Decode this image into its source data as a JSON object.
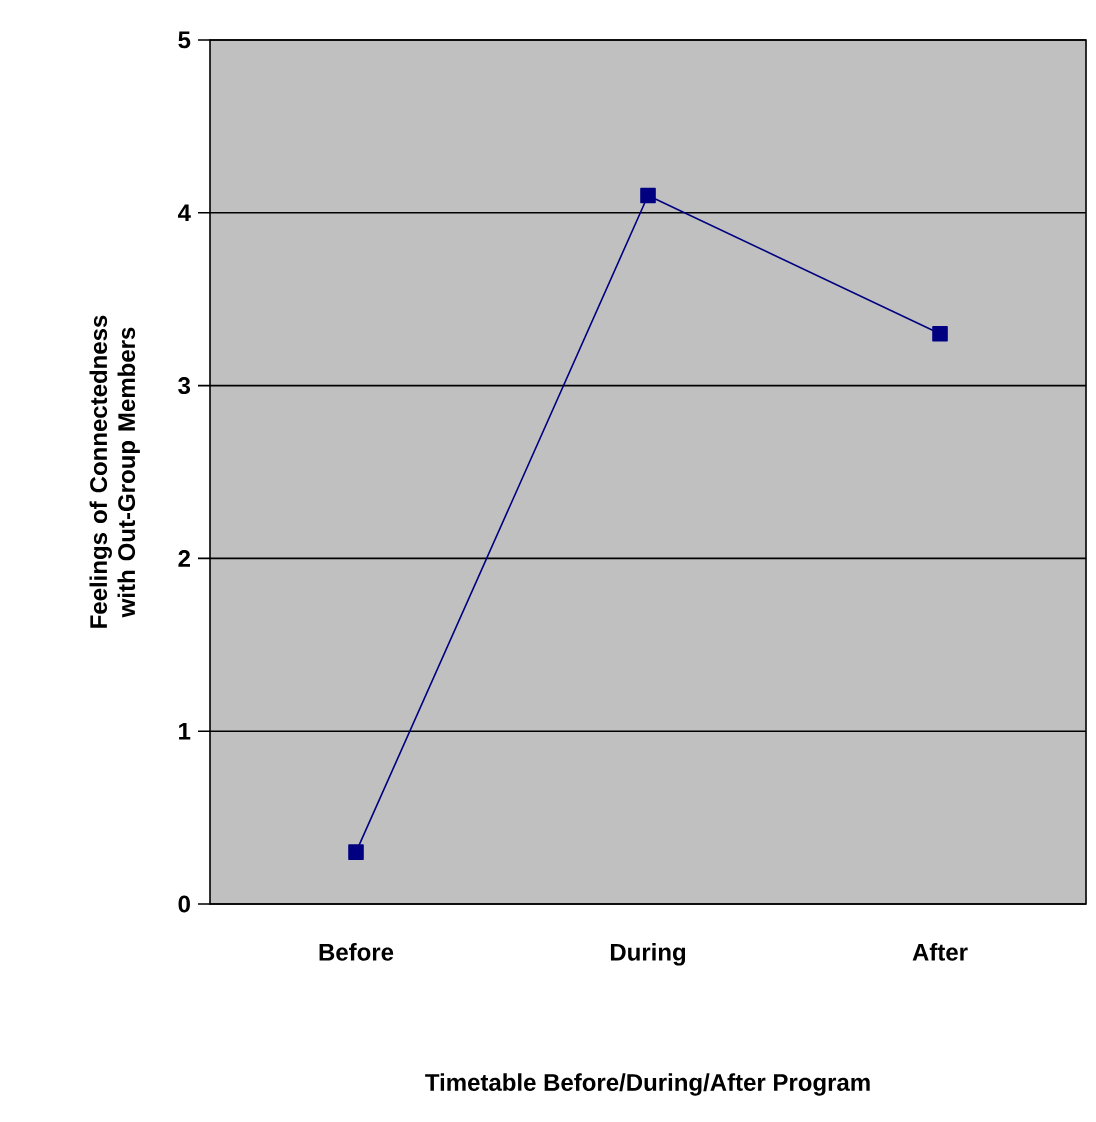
{
  "chart_data": {
    "type": "line",
    "xlabel": "Timetable Before/During/After Program",
    "ylabel": "Feelings of Connectedness with Out-Group Members",
    "categories": [
      "Before",
      "During",
      "After"
    ],
    "series": [
      {
        "color": "#000080",
        "values": [
          0.3,
          4.1,
          3.3
        ]
      }
    ],
    "ylim": [
      0,
      5
    ],
    "yticks": [
      0,
      1,
      2,
      3,
      4,
      5
    ],
    "grid": "y",
    "marker": "square",
    "line_style": "solid"
  }
}
